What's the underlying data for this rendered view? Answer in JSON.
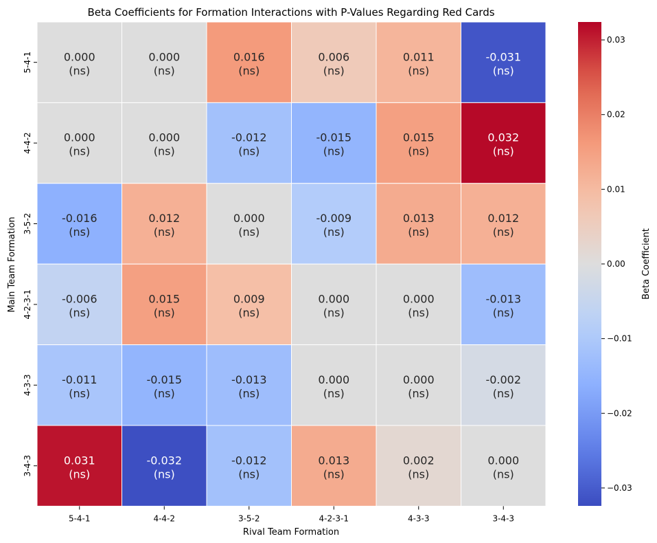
{
  "chart_data": {
    "type": "heatmap",
    "title": "Beta Coefficients for Formation Interactions with P-Values Regarding Red Cards",
    "xlabel": "Rival Team Formation",
    "ylabel": "Main Team Formation",
    "x_categories": [
      "5-4-1",
      "4-4-2",
      "3-5-2",
      "4-2-3-1",
      "4-3-3",
      "3-4-3"
    ],
    "y_categories": [
      "5-4-1",
      "4-4-2",
      "3-5-2",
      "4-2-3-1",
      "4-3-3",
      "3-4-3"
    ],
    "values": [
      [
        0.0,
        0.0,
        0.016,
        0.006,
        0.011,
        -0.031
      ],
      [
        0.0,
        0.0,
        -0.012,
        -0.015,
        0.015,
        0.032
      ],
      [
        -0.016,
        0.012,
        0.0,
        -0.009,
        0.013,
        0.012
      ],
      [
        -0.006,
        0.015,
        0.009,
        0.0,
        0.0,
        -0.013
      ],
      [
        -0.011,
        -0.015,
        -0.013,
        0.0,
        0.0,
        -0.002
      ],
      [
        0.031,
        -0.032,
        -0.012,
        0.013,
        0.002,
        0.0
      ]
    ],
    "cell_labels": [
      [
        "0.000",
        "0.000",
        "0.016",
        "0.006",
        "0.011",
        "-0.031"
      ],
      [
        "0.000",
        "0.000",
        "-0.012",
        "-0.015",
        "0.015",
        "0.032"
      ],
      [
        "-0.016",
        "0.012",
        "0.000",
        "-0.009",
        "0.013",
        "0.012"
      ],
      [
        "-0.006",
        "0.015",
        "0.009",
        "0.000",
        "0.000",
        "-0.013"
      ],
      [
        "-0.011",
        "-0.015",
        "-0.013",
        "0.000",
        "0.000",
        "-0.002"
      ],
      [
        "0.031",
        "-0.032",
        "-0.012",
        "0.013",
        "0.002",
        "0.000"
      ]
    ],
    "significance": [
      [
        "(ns)",
        "(ns)",
        "(ns)",
        "(ns)",
        "(ns)",
        "(ns)"
      ],
      [
        "(ns)",
        "(ns)",
        "(ns)",
        "(ns)",
        "(ns)",
        "(ns)"
      ],
      [
        "(ns)",
        "(ns)",
        "(ns)",
        "(ns)",
        "(ns)",
        "(ns)"
      ],
      [
        "(ns)",
        "(ns)",
        "(ns)",
        "(ns)",
        "(ns)",
        "(ns)"
      ],
      [
        "(ns)",
        "(ns)",
        "(ns)",
        "(ns)",
        "(ns)",
        "(ns)"
      ],
      [
        "(ns)",
        "(ns)",
        "(ns)",
        "(ns)",
        "(ns)",
        "(ns)"
      ]
    ],
    "colormap": "coolwarm",
    "vmin": -0.0324,
    "vmax": 0.0324,
    "colorbar": {
      "label": "Beta Coefficient",
      "ticks": [
        0.03,
        0.02,
        0.01,
        0.0,
        -0.01,
        -0.02,
        -0.03
      ],
      "tick_labels": [
        "0.03",
        "0.02",
        "0.01",
        "0.00",
        "−0.01",
        "−0.02",
        "−0.03"
      ]
    }
  }
}
